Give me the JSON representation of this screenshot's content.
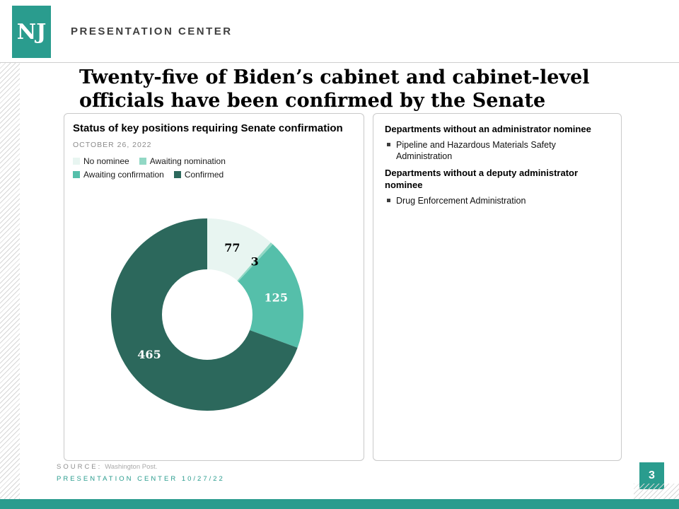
{
  "header": {
    "logo_text": "NJ",
    "brand": "PRESENTATION CENTER"
  },
  "title": "Twenty-five of Biden’s cabinet and cabinet-level\nofficials have been confirmed by the Senate",
  "chart_data": {
    "type": "donut",
    "title": "Status of key positions requiring Senate confirmation",
    "date": "OCTOBER 26, 2022",
    "total": 670,
    "start_angle_deg": 0,
    "direction": "clockwise",
    "legend_position": "top-left",
    "segments": [
      {
        "label": "No nominee",
        "value": 77,
        "color": "#e8f5f1",
        "label_color": "#000000"
      },
      {
        "label": "Awaiting nomination",
        "value": 3,
        "color": "#92d8c5",
        "label_color": "#000000"
      },
      {
        "label": "Awaiting confirmation",
        "value": 125,
        "color": "#55bfaa",
        "label_color": "#ffffff"
      },
      {
        "label": "Confirmed",
        "value": 465,
        "color": "#2c685c",
        "label_color": "#ffffff"
      }
    ]
  },
  "right_card": {
    "sections": [
      {
        "heading": "Departments without an administrator nominee",
        "bullets": [
          "Pipeline and Hazardous Materials Safety Administration"
        ]
      },
      {
        "heading": "Departments without a deputy administrator nominee",
        "bullets": [
          "Drug Enforcement Administration"
        ]
      }
    ]
  },
  "footer": {
    "source_label": "SOURCE:",
    "source_text": "Washington Post.",
    "brand_line": "PRESENTATION CENTER 10/27/22",
    "page_number": "3"
  },
  "colors": {
    "brand_teal": "#2a9c8e"
  }
}
